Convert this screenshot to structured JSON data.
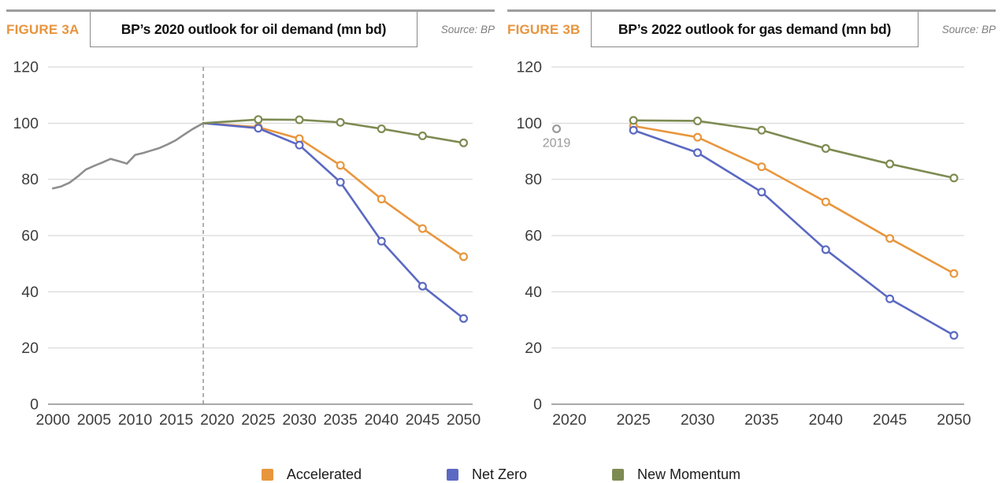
{
  "figures": [
    {
      "label": "FIGURE 3A",
      "title": "BP’s 2020 outlook for oil demand (mn bd)",
      "source": "Source: BP"
    },
    {
      "label": "FIGURE 3B",
      "title": "BP’s 2022 outlook for gas demand (mn bd)",
      "source": "Source: BP"
    }
  ],
  "legend": [
    {
      "label": "Accelerated",
      "color": "#e8963d"
    },
    {
      "label": "Net Zero",
      "color": "#5b69c2"
    },
    {
      "label": "New Momentum",
      "color": "#7d8b52"
    }
  ],
  "colors": {
    "accent_orange": "#e8943d",
    "scenario_accelerated": "#e8963d",
    "scenario_net_zero": "#5b69c2",
    "scenario_new_momentum": "#7d8b52",
    "history_gray": "#8e8e8e",
    "gridline": "#d2d2d2",
    "axis_line": "#a9a9a9",
    "tick_text": "#3d3d3d"
  },
  "chart_data": [
    {
      "type": "line",
      "title": "BP’s 2020 outlook for oil demand (mn bd)",
      "figure_label": "FIGURE 3A",
      "source": "Source: BP",
      "xlabel": "",
      "ylabel": "",
      "ylim": [
        0,
        120
      ],
      "yticks": [
        0,
        20,
        40,
        60,
        80,
        100,
        120
      ],
      "xlim": [
        1999.4,
        2051.1
      ],
      "xticks": [
        2000,
        2005,
        2010,
        2015,
        2020,
        2025,
        2030,
        2035,
        2040,
        2045,
        2050
      ],
      "grid": "horizontal",
      "legend_position": "bottom-shared",
      "annotations": [
        {
          "type": "vline",
          "x": 2018.3
        }
      ],
      "series": [
        {
          "name": "History",
          "color": "#8e8e8e",
          "marker": "none",
          "x": [
            2000,
            2001,
            2002,
            2003,
            2004,
            2005,
            2006,
            2007,
            2008,
            2009,
            2010,
            2011,
            2012,
            2013,
            2014,
            2015,
            2016,
            2017,
            2018.3
          ],
          "y": [
            76.8,
            77.5,
            78.8,
            81.0,
            83.5,
            84.8,
            86.0,
            87.3,
            86.5,
            85.6,
            88.7,
            89.4,
            90.3,
            91.2,
            92.5,
            94.0,
            96.0,
            97.9,
            100
          ]
        },
        {
          "name": "Accelerated",
          "color": "#e8963d",
          "marker": "skip-first",
          "x": [
            2018.3,
            2025,
            2030,
            2035,
            2040,
            2045,
            2050
          ],
          "y": [
            100,
            98.6,
            94.5,
            85.0,
            73.0,
            62.5,
            52.5
          ]
        },
        {
          "name": "Net Zero",
          "color": "#5b69c2",
          "marker": "skip-first",
          "x": [
            2018.3,
            2025,
            2030,
            2035,
            2040,
            2045,
            2050
          ],
          "y": [
            100,
            98.2,
            92.2,
            79.0,
            58.0,
            42.0,
            30.5
          ]
        },
        {
          "name": "New Momentum",
          "color": "#7d8b52",
          "marker": "skip-first",
          "x": [
            2018.3,
            2025,
            2030,
            2035,
            2040,
            2045,
            2050
          ],
          "y": [
            100,
            101.3,
            101.2,
            100.3,
            98.0,
            95.5,
            93.0
          ]
        }
      ]
    },
    {
      "type": "line",
      "title": "BP’s 2022 outlook for gas demand (mn bd)",
      "figure_label": "FIGURE 3B",
      "source": "Source: BP",
      "xlabel": "",
      "ylabel": "",
      "ylim": [
        0,
        120
      ],
      "yticks": [
        0,
        20,
        40,
        60,
        80,
        100,
        120
      ],
      "xlim": [
        2018.6,
        2050.8
      ],
      "xticks": [
        2020,
        2025,
        2030,
        2035,
        2040,
        2045,
        2050
      ],
      "grid": "horizontal",
      "legend_position": "bottom-shared",
      "annotations": [
        {
          "type": "label",
          "x": 2019,
          "y": 98,
          "dy": 23,
          "text": "2019"
        }
      ],
      "series": [
        {
          "name": "2019",
          "color": "#9a9a9a",
          "marker": "all",
          "x": [
            2019
          ],
          "y": [
            98
          ]
        },
        {
          "name": "Accelerated",
          "color": "#e8963d",
          "marker": "all",
          "x": [
            2025,
            2030,
            2035,
            2040,
            2045,
            2050
          ],
          "y": [
            99.0,
            95.0,
            84.5,
            72.0,
            59.0,
            46.5
          ]
        },
        {
          "name": "Net Zero",
          "color": "#5b69c2",
          "marker": "all",
          "x": [
            2025,
            2030,
            2035,
            2040,
            2045,
            2050
          ],
          "y": [
            97.5,
            89.5,
            75.5,
            55.0,
            37.5,
            24.5
          ]
        },
        {
          "name": "New Momentum",
          "color": "#7d8b52",
          "marker": "all",
          "x": [
            2025,
            2030,
            2035,
            2040,
            2045,
            2050
          ],
          "y": [
            101.0,
            100.8,
            97.5,
            91.0,
            85.5,
            80.5
          ]
        }
      ]
    }
  ]
}
